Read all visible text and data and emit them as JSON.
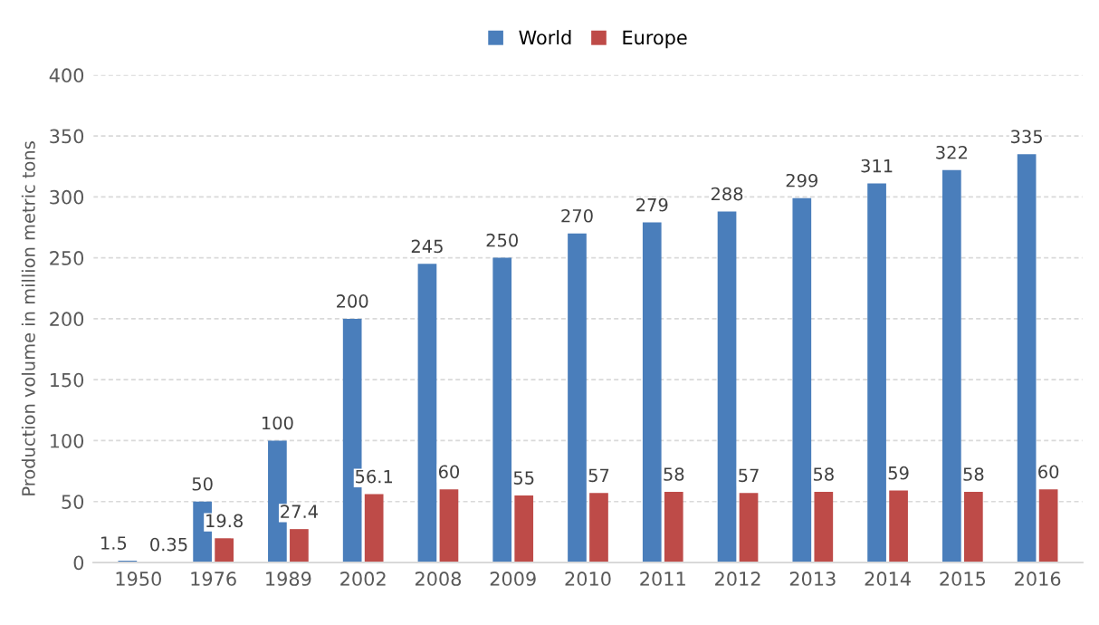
{
  "chart_data": {
    "type": "bar",
    "ylabel": "Production volume in million metric tons",
    "categories": [
      "1950",
      "1976",
      "1989",
      "2002",
      "2008",
      "2009",
      "2010",
      "2011",
      "2012",
      "2013",
      "2014",
      "2015",
      "2016"
    ],
    "series": [
      {
        "name": "World",
        "color": "#4a7ebb",
        "values": [
          1.5,
          50,
          100,
          200,
          245,
          250,
          270,
          279,
          288,
          299,
          311,
          322,
          335
        ]
      },
      {
        "name": "Europe",
        "color": "#be4b48",
        "values": [
          0.35,
          19.8,
          27.4,
          56.1,
          60,
          55,
          57,
          58,
          57,
          58,
          59,
          58,
          60
        ]
      }
    ],
    "ylim": [
      0,
      400
    ],
    "yticks": [
      0,
      50,
      100,
      150,
      200,
      250,
      300,
      350,
      400
    ],
    "grid": "y",
    "legend": "top",
    "data_labels": true
  }
}
